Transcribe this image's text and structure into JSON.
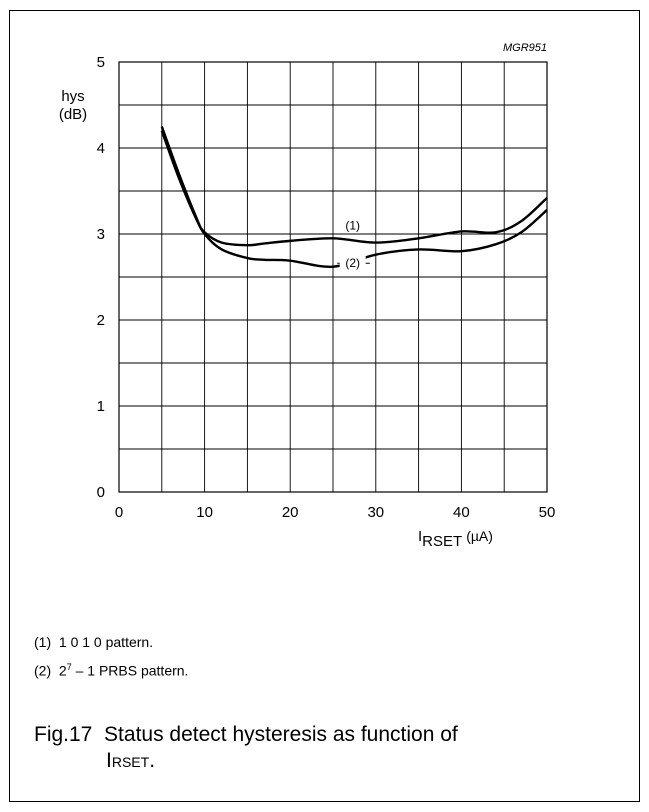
{
  "chart_data": {
    "type": "line",
    "figure_code": "MGR951",
    "ylabel": "hys",
    "yunit": "(dB)",
    "xlabel_main": "I",
    "xlabel_sub": "RSET",
    "xlabel_unit": "(µA)",
    "xlim": [
      0,
      50
    ],
    "ylim": [
      0,
      5
    ],
    "xticks": [
      0,
      10,
      20,
      30,
      40,
      50
    ],
    "yticks": [
      0,
      1,
      2,
      3,
      4,
      5
    ],
    "grid": true,
    "series": [
      {
        "name": "(1)",
        "x": [
          5,
          7,
          9,
          10,
          12,
          15,
          17,
          20,
          25,
          30,
          35,
          40,
          44,
          47,
          50
        ],
        "y": [
          4.2,
          3.65,
          3.18,
          3.02,
          2.9,
          2.87,
          2.89,
          2.92,
          2.95,
          2.9,
          2.95,
          3.03,
          3.02,
          3.15,
          3.42
        ]
      },
      {
        "name": "(2)",
        "x": [
          5,
          7,
          9,
          10,
          12,
          15,
          17,
          20,
          25,
          30,
          35,
          40,
          44,
          47,
          50
        ],
        "y": [
          4.25,
          3.7,
          3.2,
          3.0,
          2.82,
          2.72,
          2.7,
          2.69,
          2.62,
          2.76,
          2.82,
          2.8,
          2.88,
          3.02,
          3.28
        ]
      }
    ]
  },
  "notes": [
    {
      "num": "(1)",
      "pre": "1 0 1 0 pattern.",
      "sup": "",
      "post": ""
    },
    {
      "num": "(2)",
      "pre": "2",
      "sup": "7",
      "post": " – 1 PRBS pattern."
    }
  ],
  "caption": {
    "label": "Fig.17",
    "line1": "Status detect hysteresis as function of",
    "line2_main": "I",
    "line2_sub": "RSET",
    "line2_end": "."
  }
}
